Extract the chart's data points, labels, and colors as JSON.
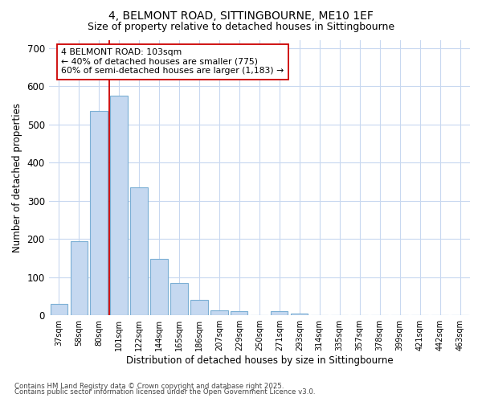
{
  "title1": "4, BELMONT ROAD, SITTINGBOURNE, ME10 1EF",
  "title2": "Size of property relative to detached houses in Sittingbourne",
  "xlabel": "Distribution of detached houses by size in Sittingbourne",
  "ylabel": "Number of detached properties",
  "categories": [
    "37sqm",
    "58sqm",
    "80sqm",
    "101sqm",
    "122sqm",
    "144sqm",
    "165sqm",
    "186sqm",
    "207sqm",
    "229sqm",
    "250sqm",
    "271sqm",
    "293sqm",
    "314sqm",
    "335sqm",
    "357sqm",
    "378sqm",
    "399sqm",
    "421sqm",
    "442sqm",
    "463sqm"
  ],
  "values": [
    30,
    193,
    535,
    575,
    335,
    148,
    85,
    40,
    13,
    10,
    0,
    10,
    5,
    0,
    0,
    0,
    0,
    0,
    0,
    0,
    0
  ],
  "bar_color": "#c5d8f0",
  "bar_edge_color": "#7bafd4",
  "vline_color": "#cc0000",
  "annotation_title": "4 BELMONT ROAD: 103sqm",
  "annotation_line1": "← 40% of detached houses are smaller (775)",
  "annotation_line2": "60% of semi-detached houses are larger (1,183) →",
  "annotation_box_color": "#ffffff",
  "annotation_box_edge": "#cc0000",
  "background_color": "#ffffff",
  "grid_color": "#c8d8f0",
  "footer1": "Contains HM Land Registry data © Crown copyright and database right 2025.",
  "footer2": "Contains public sector information licensed under the Open Government Licence v3.0.",
  "ylim": [
    0,
    720
  ],
  "yticks": [
    0,
    100,
    200,
    300,
    400,
    500,
    600,
    700
  ]
}
